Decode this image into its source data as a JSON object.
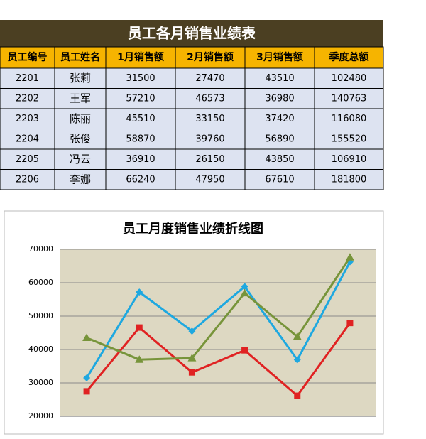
{
  "table": {
    "title": "员工各月销售业绩表",
    "header": [
      "员工编号",
      "员工姓名",
      "1月销售额",
      "2月销售额",
      "3月销售额",
      "季度总额"
    ],
    "rows": [
      [
        2201,
        "张莉",
        31500,
        27470,
        43510,
        102480
      ],
      [
        2202,
        "王军",
        57210,
        46573,
        36980,
        140763
      ],
      [
        2203,
        "陈丽",
        45510,
        33150,
        37420,
        116080
      ],
      [
        2204,
        "张俊",
        58870,
        39760,
        56890,
        155520
      ],
      [
        2205,
        "冯云",
        36910,
        26150,
        43850,
        106910
      ],
      [
        2206,
        "李娜",
        66240,
        47950,
        67610,
        181800
      ]
    ]
  },
  "chart_data": {
    "type": "line",
    "title": "员工月度销售业绩折线图",
    "categories": [
      null,
      null,
      null,
      null,
      null,
      null
    ],
    "series": [
      {
        "color": "#1ea8e0",
        "marker": "diamond",
        "values": [
          31500,
          57210,
          45510,
          58870,
          36910,
          66240
        ]
      },
      {
        "color": "#e02222",
        "marker": "square",
        "values": [
          27470,
          46573,
          33150,
          39760,
          26150,
          47950
        ]
      },
      {
        "color": "#77943a",
        "marker": "triangle",
        "values": [
          43510,
          36980,
          37420,
          56890,
          43850,
          67610
        ]
      }
    ],
    "ylim": [
      20000,
      70000
    ],
    "yticks": [
      20000,
      30000,
      40000,
      50000,
      60000,
      70000
    ],
    "grid": true
  }
}
